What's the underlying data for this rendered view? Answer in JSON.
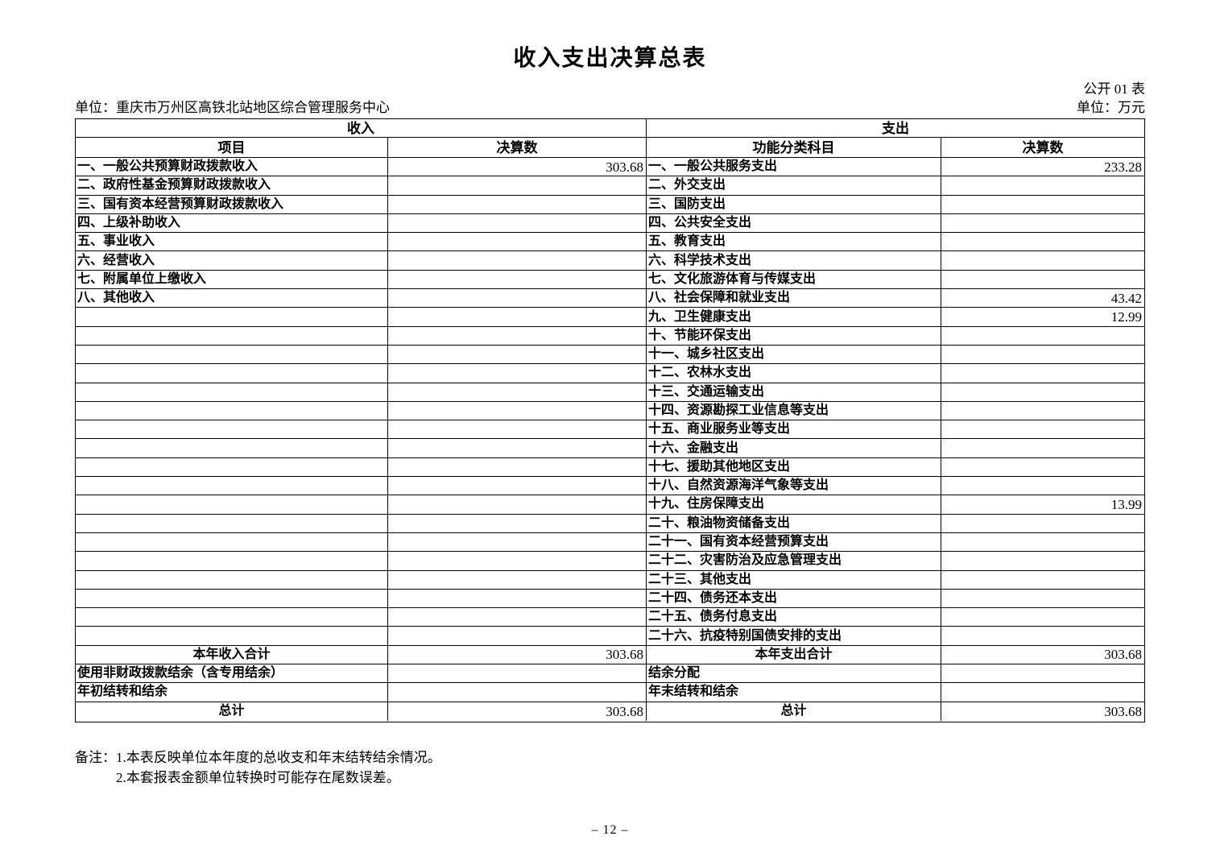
{
  "colors": {
    "text": "#000000",
    "background": "#ffffff",
    "border": "#000000"
  },
  "header": {
    "title": "收入支出决算总表",
    "doc_code": "公开 01 表",
    "org_line": "单位：重庆市万州区高铁北站地区综合管理服务中心",
    "unit_line": "单位：万元"
  },
  "table": {
    "income_section": "收入",
    "expense_section": "支出",
    "columns": {
      "income_item": "项目",
      "income_value": "决算数",
      "expense_item": "功能分类科目",
      "expense_value": "决算数"
    },
    "rows": [
      {
        "income_item": "一、一般公共预算财政拨款收入",
        "income_value": "303.68",
        "expense_item": "一、一般公共服务支出",
        "expense_value": "233.28",
        "center": false
      },
      {
        "income_item": "二、政府性基金预算财政拨款收入",
        "income_value": "",
        "expense_item": "二、外交支出",
        "expense_value": "",
        "center": false
      },
      {
        "income_item": "三、国有资本经营预算财政拨款收入",
        "income_value": "",
        "expense_item": "三、国防支出",
        "expense_value": "",
        "center": false
      },
      {
        "income_item": "四、上级补助收入",
        "income_value": "",
        "expense_item": "四、公共安全支出",
        "expense_value": "",
        "center": false
      },
      {
        "income_item": "五、事业收入",
        "income_value": "",
        "expense_item": "五、教育支出",
        "expense_value": "",
        "center": false
      },
      {
        "income_item": "六、经营收入",
        "income_value": "",
        "expense_item": "六、科学技术支出",
        "expense_value": "",
        "center": false
      },
      {
        "income_item": "七、附属单位上缴收入",
        "income_value": "",
        "expense_item": "七、文化旅游体育与传媒支出",
        "expense_value": "",
        "center": false
      },
      {
        "income_item": "八、其他收入",
        "income_value": "",
        "expense_item": "八、社会保障和就业支出",
        "expense_value": "43.42",
        "center": false
      },
      {
        "income_item": "",
        "income_value": "",
        "expense_item": "九、卫生健康支出",
        "expense_value": "12.99",
        "center": false
      },
      {
        "income_item": "",
        "income_value": "",
        "expense_item": "十、节能环保支出",
        "expense_value": "",
        "center": false
      },
      {
        "income_item": "",
        "income_value": "",
        "expense_item": "十一、城乡社区支出",
        "expense_value": "",
        "center": false
      },
      {
        "income_item": "",
        "income_value": "",
        "expense_item": "十二、农林水支出",
        "expense_value": "",
        "center": false
      },
      {
        "income_item": "",
        "income_value": "",
        "expense_item": "十三、交通运输支出",
        "expense_value": "",
        "center": false
      },
      {
        "income_item": "",
        "income_value": "",
        "expense_item": "十四、资源勘探工业信息等支出",
        "expense_value": "",
        "center": false
      },
      {
        "income_item": "",
        "income_value": "",
        "expense_item": "十五、商业服务业等支出",
        "expense_value": "",
        "center": false
      },
      {
        "income_item": "",
        "income_value": "",
        "expense_item": "十六、金融支出",
        "expense_value": "",
        "center": false
      },
      {
        "income_item": "",
        "income_value": "",
        "expense_item": "十七、援助其他地区支出",
        "expense_value": "",
        "center": false
      },
      {
        "income_item": "",
        "income_value": "",
        "expense_item": "十八、自然资源海洋气象等支出",
        "expense_value": "",
        "center": false
      },
      {
        "income_item": "",
        "income_value": "",
        "expense_item": "十九、住房保障支出",
        "expense_value": "13.99",
        "center": false
      },
      {
        "income_item": "",
        "income_value": "",
        "expense_item": "二十、粮油物资储备支出",
        "expense_value": "",
        "center": false
      },
      {
        "income_item": "",
        "income_value": "",
        "expense_item": "二十一、国有资本经营预算支出",
        "expense_value": "",
        "center": false
      },
      {
        "income_item": "",
        "income_value": "",
        "expense_item": "二十二、灾害防治及应急管理支出",
        "expense_value": "",
        "center": false
      },
      {
        "income_item": "",
        "income_value": "",
        "expense_item": "二十三、其他支出",
        "expense_value": "",
        "center": false
      },
      {
        "income_item": "",
        "income_value": "",
        "expense_item": "二十四、债务还本支出",
        "expense_value": "",
        "center": false
      },
      {
        "income_item": "",
        "income_value": "",
        "expense_item": "二十五、债务付息支出",
        "expense_value": "",
        "center": false
      },
      {
        "income_item": "",
        "income_value": "",
        "expense_item": "二十六、抗疫特别国债安排的支出",
        "expense_value": "",
        "center": false
      },
      {
        "income_item": "本年收入合计",
        "income_value": "303.68",
        "expense_item": "本年支出合计",
        "expense_value": "303.68",
        "center": true
      },
      {
        "income_item": "使用非财政拨款结余（含专用结余）",
        "income_value": "",
        "expense_item": "结余分配",
        "expense_value": "",
        "center": false
      },
      {
        "income_item": "年初结转和结余",
        "income_value": "",
        "expense_item": "年末结转和结余",
        "expense_value": "",
        "center": false
      },
      {
        "income_item": "总计",
        "income_value": "303.68",
        "expense_item": "总计",
        "expense_value": "303.68",
        "center": true
      }
    ]
  },
  "notes": {
    "label": "备注：",
    "line1": "1.本表反映单位本年度的总收支和年末结转结余情况。",
    "line2": "2.本套报表金额单位转换时可能存在尾数误差。"
  },
  "footer": {
    "page_number": "– 12 –"
  }
}
